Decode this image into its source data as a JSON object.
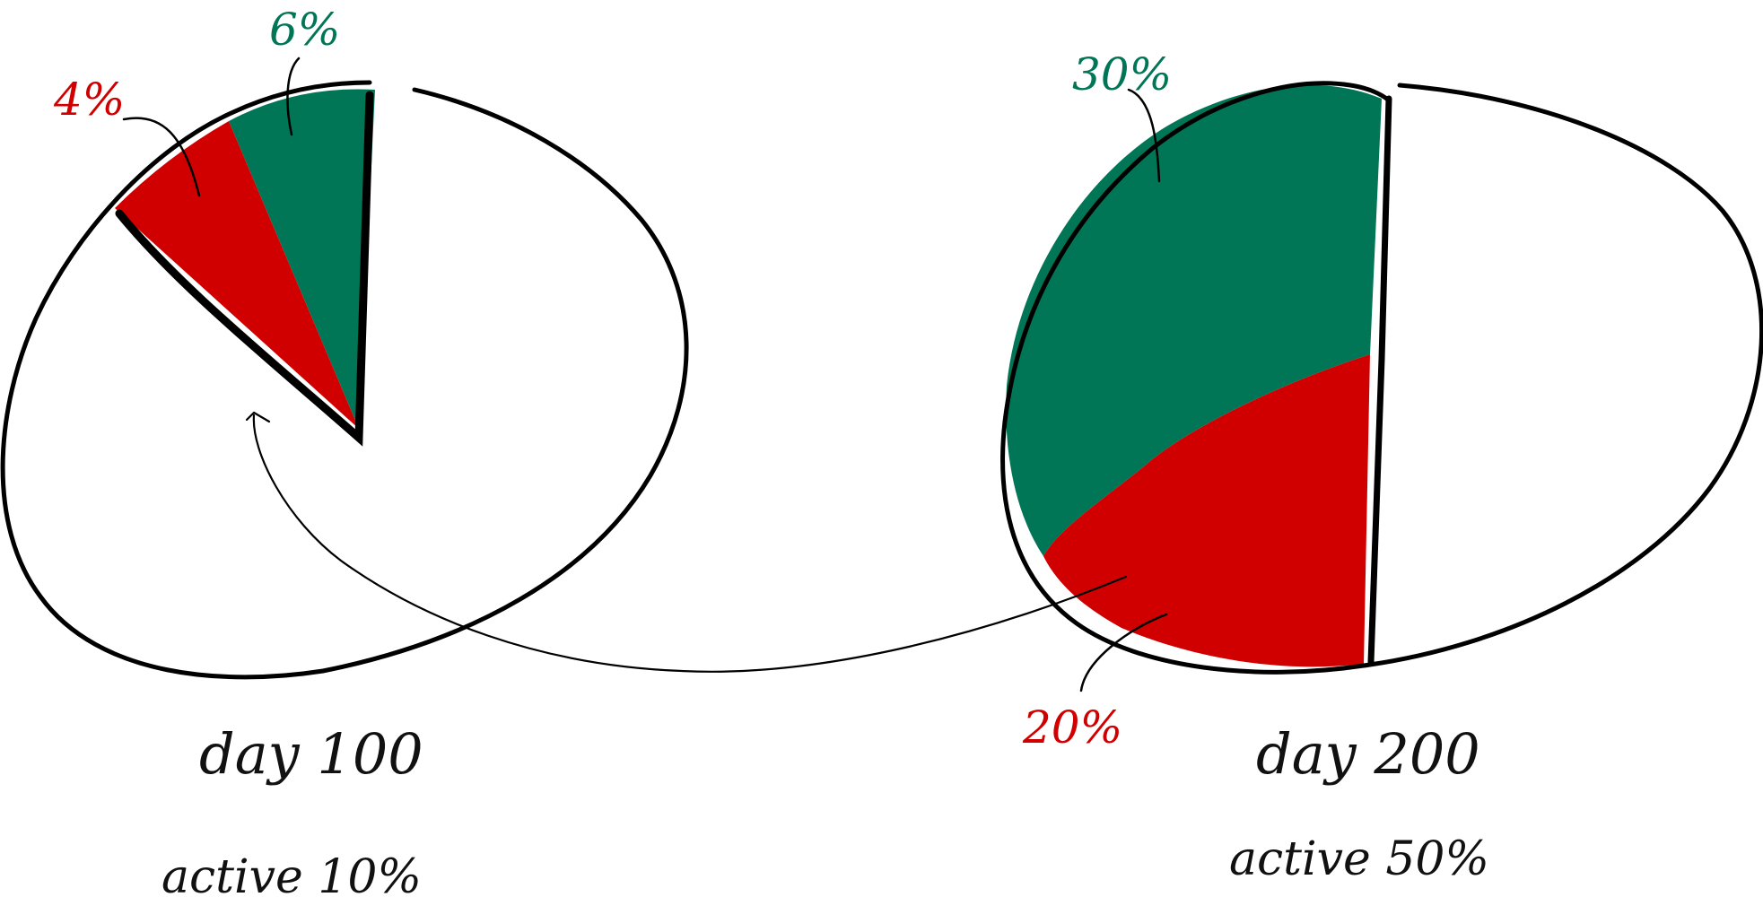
{
  "colors": {
    "green": "#007656",
    "red": "#d10000",
    "ink": "#000000"
  },
  "chart_data": [
    {
      "type": "pie",
      "caption": "day 100",
      "subcaption": "active 10%",
      "slices": [
        {
          "value": 6,
          "label": "6%",
          "color": "#007656"
        },
        {
          "value": 4,
          "label": "4%",
          "color": "#d10000"
        }
      ]
    },
    {
      "type": "pie",
      "caption": "day 200",
      "subcaption": "active 50%",
      "slices": [
        {
          "value": 30,
          "label": "30%",
          "color": "#007656"
        },
        {
          "value": 20,
          "label": "20%",
          "color": "#d10000"
        }
      ]
    }
  ]
}
